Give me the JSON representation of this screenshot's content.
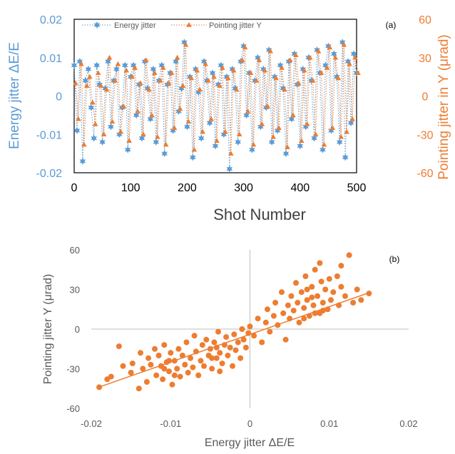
{
  "colors": {
    "energy": "#5B9BD5",
    "pointing": "#ED7D31",
    "axis_text": "#595959",
    "frame": "#000000",
    "xtitle_a": "#404040",
    "scatter_axis": "#BFBFBF"
  },
  "chart_data": [
    {
      "type": "line",
      "panel_label": "(a)",
      "xlabel": "Shot Number",
      "ylabel_left": "Energy jitter ΔE/E",
      "ylabel_right": "Pointing jitter in Y (μrad)",
      "xlim": [
        0,
        500
      ],
      "ylim_left": [
        -0.02,
        0.02
      ],
      "ylim_right": [
        -60,
        60
      ],
      "x_ticks": [
        "0",
        "100",
        "200",
        "300",
        "400",
        "500"
      ],
      "y_left_ticks": [
        "-0.02",
        "-0.01",
        "0",
        "0.01",
        "0.02"
      ],
      "y_right_ticks": [
        "-60",
        "-30",
        "0",
        "30",
        "60"
      ],
      "legend_position": "top",
      "series": [
        {
          "name": "Energy jitter",
          "axis": "left",
          "marker": "star",
          "line": "dotted",
          "x_step": 5,
          "values": [
            0.008,
            -0.009,
            0.009,
            -0.017,
            0.004,
            0.007,
            -0.003,
            -0.011,
            0.008,
            0.003,
            -0.012,
            0.002,
            0.009,
            -0.008,
            0.004,
            0.007,
            -0.01,
            -0.003,
            0.008,
            -0.014,
            0.005,
            0.008,
            -0.005,
            0.003,
            -0.011,
            0.009,
            0.002,
            -0.006,
            0.007,
            -0.012,
            0.004,
            0.008,
            -0.015,
            0.003,
            0.006,
            -0.009,
            0.009,
            -0.004,
            0.002,
            0.014,
            -0.008,
            0.005,
            -0.016,
            0.007,
            0.001,
            -0.011,
            0.009,
            0.004,
            -0.007,
            0.006,
            -0.013,
            0.003,
            0.008,
            -0.01,
            0.005,
            -0.019,
            0.007,
            0.002,
            -0.012,
            0.009,
            0.013,
            -0.005,
            0.006,
            -0.014,
            0.004,
            0.01,
            -0.008,
            0.007,
            -0.003,
            0.012,
            -0.012,
            0.005,
            -0.009,
            0.008,
            0.002,
            -0.015,
            0.009,
            -0.006,
            0.011,
            0.003,
            -0.013,
            0.007,
            -0.008,
            0.01,
            0.004,
            -0.011,
            0.012,
            0.006,
            -0.014,
            0.008,
            0.013,
            -0.009,
            0.011,
            0.005,
            -0.012,
            0.014,
            -0.016,
            0.009,
            -0.007,
            0.011,
            0.006
          ]
        },
        {
          "name": "Pointing jitter Y",
          "axis": "right",
          "marker": "triangle",
          "line": "dotted",
          "x_step": 5,
          "values": [
            10,
            -18,
            25,
            -38,
            8,
            15,
            -5,
            -22,
            18,
            8,
            -30,
            5,
            30,
            -20,
            12,
            25,
            -28,
            -8,
            20,
            -35,
            15,
            22,
            -12,
            10,
            -30,
            28,
            5,
            -15,
            18,
            -32,
            12,
            22,
            -38,
            10,
            18,
            -25,
            30,
            -10,
            8,
            40,
            -20,
            14,
            -42,
            20,
            5,
            -28,
            25,
            12,
            -18,
            15,
            -35,
            8,
            22,
            -28,
            14,
            -45,
            20,
            5,
            -30,
            28,
            38,
            -12,
            18,
            -38,
            12,
            28,
            -22,
            20,
            -8,
            35,
            -32,
            14,
            -25,
            22,
            5,
            -40,
            28,
            -15,
            32,
            10,
            -35,
            20,
            -22,
            30,
            12,
            -30,
            35,
            18,
            -38,
            22,
            38,
            -25,
            30,
            14,
            -32,
            40,
            -28,
            25,
            -18,
            30,
            18
          ]
        }
      ]
    },
    {
      "type": "scatter",
      "panel_label": "(b)",
      "xlabel": "Energy jitter ΔE/E",
      "ylabel": "Pointing jitter Y (μrad)",
      "xlim": [
        -0.02,
        0.02
      ],
      "ylim": [
        -60,
        60
      ],
      "x_ticks": [
        "-0.02",
        "-0.01",
        "0",
        "0.01",
        "0.02"
      ],
      "y_ticks": [
        "-60",
        "-30",
        "0",
        "30",
        "60"
      ],
      "trendline": {
        "slope": 2100,
        "intercept": -4,
        "x_range": [
          -0.019,
          0.015
        ]
      },
      "series": [
        {
          "marker": "circle",
          "points": [
            [
              -0.019,
              -44
            ],
            [
              -0.018,
              -38
            ],
            [
              -0.0175,
              -36
            ],
            [
              -0.0165,
              -13
            ],
            [
              -0.016,
              -28
            ],
            [
              -0.015,
              -33
            ],
            [
              -0.0148,
              -26
            ],
            [
              -0.014,
              -45
            ],
            [
              -0.0138,
              -18
            ],
            [
              -0.0135,
              -30
            ],
            [
              -0.013,
              -40
            ],
            [
              -0.0128,
              -22
            ],
            [
              -0.0125,
              -27
            ],
            [
              -0.012,
              -15
            ],
            [
              -0.0118,
              -35
            ],
            [
              -0.0115,
              -20
            ],
            [
              -0.0112,
              -28
            ],
            [
              -0.011,
              -38
            ],
            [
              -0.0108,
              -12
            ],
            [
              -0.0105,
              -25
            ],
            [
              -0.0102,
              -32
            ],
            [
              -0.01,
              -18
            ],
            [
              -0.0098,
              -42
            ],
            [
              -0.0095,
              -24
            ],
            [
              -0.0092,
              -30
            ],
            [
              -0.009,
              -15
            ],
            [
              -0.0088,
              -36
            ],
            [
              -0.0085,
              -20
            ],
            [
              -0.0082,
              -27
            ],
            [
              -0.008,
              -10
            ],
            [
              -0.0078,
              -33
            ],
            [
              -0.0075,
              -22
            ],
            [
              -0.0072,
              -29
            ],
            [
              -0.007,
              -5
            ],
            [
              -0.0068,
              -17
            ],
            [
              -0.0065,
              -35
            ],
            [
              -0.0062,
              -24
            ],
            [
              -0.006,
              -12
            ],
            [
              -0.0058,
              -28
            ],
            [
              -0.0055,
              -8
            ],
            [
              -0.0052,
              -20
            ],
            [
              -0.005,
              -15
            ],
            [
              -0.0048,
              -30
            ],
            [
              -0.0045,
              -10
            ],
            [
              -0.0042,
              -22
            ],
            [
              -0.004,
              -2
            ],
            [
              -0.0038,
              -18
            ],
            [
              -0.0035,
              -26
            ],
            [
              -0.0032,
              -12
            ],
            [
              -0.003,
              -6
            ],
            [
              -0.0028,
              -20
            ],
            [
              -0.0025,
              -14
            ],
            [
              -0.0022,
              -28
            ],
            [
              -0.002,
              -4
            ],
            [
              -0.0018,
              -16
            ],
            [
              -0.0015,
              -10
            ],
            [
              -0.0012,
              -22
            ],
            [
              -0.001,
              0
            ],
            [
              -0.0008,
              -8
            ],
            [
              -0.0005,
              -14
            ],
            [
              -0.0002,
              -3
            ],
            [
              0,
              2
            ],
            [
              0.0005,
              -5
            ],
            [
              0.001,
              8
            ],
            [
              0.0015,
              -10
            ],
            [
              0.002,
              5
            ],
            [
              0.0022,
              15
            ],
            [
              0.0025,
              -2
            ],
            [
              0.003,
              10
            ],
            [
              0.0032,
              20
            ],
            [
              0.0035,
              3
            ],
            [
              0.004,
              28
            ],
            [
              0.0042,
              12
            ],
            [
              0.0045,
              -8
            ],
            [
              0.0048,
              18
            ],
            [
              0.005,
              8
            ],
            [
              0.0052,
              25
            ],
            [
              0.0055,
              14
            ],
            [
              0.0058,
              35
            ],
            [
              0.006,
              20
            ],
            [
              0.0062,
              5
            ],
            [
              0.0065,
              28
            ],
            [
              0.0068,
              16
            ],
            [
              0.007,
              40
            ],
            [
              0.0072,
              22
            ],
            [
              0.0075,
              10
            ],
            [
              0.0078,
              32
            ],
            [
              0.008,
              18
            ],
            [
              0.0082,
              45
            ],
            [
              0.0085,
              25
            ],
            [
              0.0088,
              12
            ],
            [
              0.009,
              36
            ],
            [
              0.0092,
              20
            ],
            [
              0.0095,
              30
            ],
            [
              0.0098,
              15
            ],
            [
              0.01,
              38
            ],
            [
              0.0102,
              22
            ],
            [
              0.0105,
              28
            ],
            [
              0.011,
              40
            ],
            [
              0.0112,
              18
            ],
            [
              0.0115,
              32
            ],
            [
              0.012,
              25
            ],
            [
              0.0125,
              56
            ],
            [
              0.013,
              20
            ],
            [
              0.0135,
              30
            ],
            [
              0.014,
              22
            ],
            [
              0.015,
              27
            ],
            [
              0.0088,
              50
            ],
            [
              0.0115,
              48
            ],
            [
              0.0068,
              8
            ],
            [
              -0.0108,
              -30
            ],
            [
              -0.0102,
              -24
            ],
            [
              -0.0095,
              -35
            ],
            [
              -0.0048,
              -22
            ],
            [
              -0.0042,
              -14
            ],
            [
              -0.0038,
              -32
            ],
            [
              0.0078,
              24
            ],
            [
              0.0082,
              12
            ],
            [
              0.0072,
              30
            ],
            [
              0.0092,
              14
            ]
          ]
        }
      ]
    }
  ]
}
